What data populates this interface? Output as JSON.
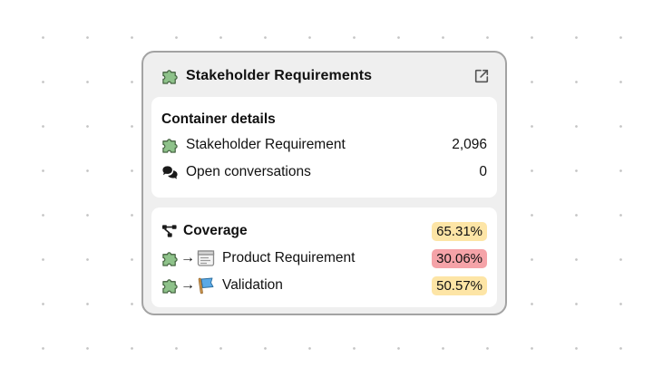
{
  "node": {
    "title": "Stakeholder Requirements",
    "header_icon": "puzzle-icon",
    "open_icon": "external-link-icon"
  },
  "details": {
    "title": "Container details",
    "rows": [
      {
        "icon": "puzzle-icon",
        "label": "Stakeholder Requirement",
        "value": "2,096"
      },
      {
        "icon": "chat-bubbles-icon",
        "label": "Open conversations",
        "value": "0"
      }
    ]
  },
  "coverage": {
    "title": "Coverage",
    "icon": "hierarchy-icon",
    "total": "65.31%",
    "arrow": "→",
    "rows": [
      {
        "from_icon": "puzzle-icon",
        "to_icon": "document-icon",
        "label": "Product Requirement",
        "value": "30.06%",
        "status": "low"
      },
      {
        "from_icon": "puzzle-icon",
        "to_icon": "flag-icon",
        "label": "Validation",
        "value": "50.57%",
        "status": "medium"
      }
    ]
  },
  "colors": {
    "badge_yellow": "#fde5a6",
    "badge_red": "#f5a3a8",
    "puzzle_green": "#8ec28a",
    "node_border": "#a3a3a3"
  }
}
